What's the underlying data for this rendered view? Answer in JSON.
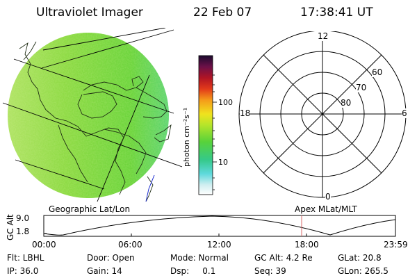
{
  "header": {
    "instrument": "Ultraviolet Imager",
    "date": "22 Feb 07",
    "time": "17:38:41 UT"
  },
  "colorbar": {
    "unit_label": "photon cm⁻²s⁻¹",
    "ticks": [
      "100",
      "10"
    ],
    "scale": "log"
  },
  "polar_plot": {
    "mlt_labels": [
      "12",
      "18",
      "6",
      "0"
    ],
    "mlat_labels": [
      "60",
      "70",
      "80"
    ]
  },
  "section_labels": {
    "geo": "Geographic Lat/Lon",
    "apex": "Apex MLat/MLT"
  },
  "gc_alt_plot": {
    "ylabel": "GC Alt",
    "y_ticks": [
      "9.0",
      "1.8"
    ],
    "x_ticks": [
      "00:00",
      "06:00",
      "12:00",
      "18:00",
      "23:59"
    ]
  },
  "status": {
    "flt": "Flt: LBHL",
    "door": "Door: Open",
    "mode": "Mode: Normal",
    "gcalt": "GC Alt: 4.2 Re",
    "glat": "GLat:  20.8",
    "ip": "IP: 36.0",
    "gain": "Gain: 14",
    "dsp": "Dsp:     0.1",
    "seq": "Seq: 39",
    "glon": "GLon: 265.5"
  },
  "colors": {
    "disk_main": "#7ed83a",
    "disk_light": "#b7e86a",
    "disk_blue": "#6fd2b0",
    "coast": "#1a2a10",
    "orbit_marker": "#d86a6a"
  }
}
